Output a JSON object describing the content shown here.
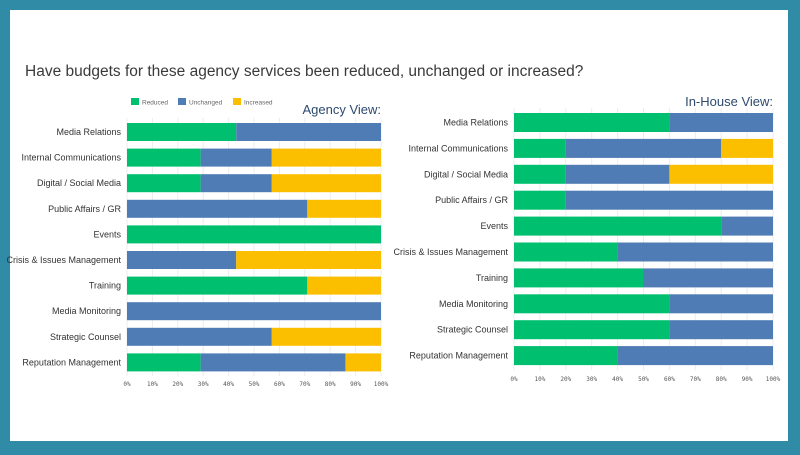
{
  "title": "Have budgets for these agency services been reduced, unchanged or increased?",
  "legend": [
    {
      "name": "Reduced",
      "color": "#00bf6f"
    },
    {
      "name": "Unchanged",
      "color": "#507cb6"
    },
    {
      "name": "Increased",
      "color": "#fbbf00"
    }
  ],
  "chart_data": [
    {
      "type": "bar",
      "orientation": "horizontal",
      "stacked": true,
      "title": "Agency View:",
      "categories": [
        "Media Relations",
        "Internal Communications",
        "Digital / Social Media",
        "Public Affairs / GR",
        "Events",
        "Crisis & Issues Management",
        "Training",
        "Media Monitoring",
        "Strategic Counsel",
        "Reputation Management"
      ],
      "series": [
        {
          "name": "Reduced",
          "values": [
            43,
            29,
            29,
            0,
            100,
            0,
            71,
            0,
            0,
            29
          ]
        },
        {
          "name": "Unchanged",
          "values": [
            57,
            28,
            28,
            71,
            0,
            43,
            0,
            100,
            57,
            57
          ]
        },
        {
          "name": "Increased",
          "values": [
            0,
            43,
            43,
            29,
            0,
            57,
            29,
            0,
            43,
            14
          ]
        }
      ],
      "xlim": [
        0,
        100
      ],
      "xticks": [
        "0%",
        "10%",
        "20%",
        "30%",
        "40%",
        "50%",
        "60%",
        "70%",
        "80%",
        "90%",
        "100%"
      ],
      "legend_position": "top-left",
      "grid": true
    },
    {
      "type": "bar",
      "orientation": "horizontal",
      "stacked": true,
      "title": "In-House View:",
      "categories": [
        "Media Relations",
        "Internal Communications",
        "Digital / Social Media",
        "Public Affairs / GR",
        "Events",
        "Crisis & Issues Management",
        "Training",
        "Media Monitoring",
        "Strategic Counsel",
        "Reputation Management"
      ],
      "series": [
        {
          "name": "Reduced",
          "values": [
            60,
            20,
            20,
            20,
            80,
            40,
            50,
            60,
            60,
            40
          ]
        },
        {
          "name": "Unchanged",
          "values": [
            40,
            60,
            40,
            80,
            20,
            60,
            50,
            40,
            40,
            60
          ]
        },
        {
          "name": "Increased",
          "values": [
            0,
            20,
            40,
            0,
            0,
            0,
            0,
            0,
            0,
            0
          ]
        }
      ],
      "xlim": [
        0,
        100
      ],
      "xticks": [
        "0%",
        "10%",
        "20%",
        "30%",
        "40%",
        "50%",
        "60%",
        "70%",
        "80%",
        "90%",
        "100%"
      ],
      "grid": true
    }
  ]
}
